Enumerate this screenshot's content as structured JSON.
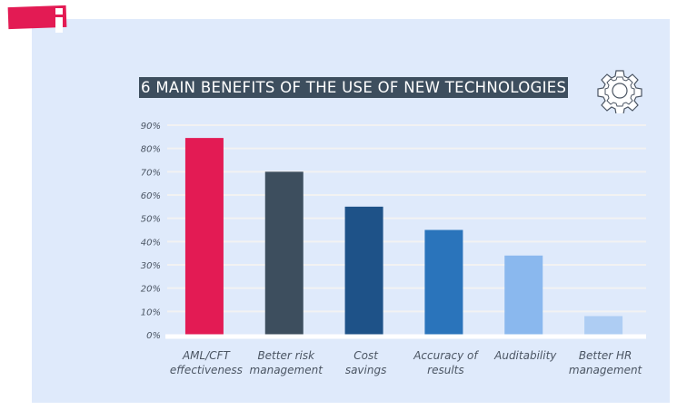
{
  "badge": {
    "icon": "info-icon",
    "color": "#e31b54"
  },
  "header": {
    "title": "6 MAIN BENEFITS OF THE USE OF NEW TECHNOLOGIES",
    "icon": "gear-icon"
  },
  "colors": {
    "panel": "#dfeafb",
    "title_bg": "#3d4e5e",
    "gridline": "#f2f2f2",
    "baseline": "#ffffff"
  },
  "chart_data": {
    "type": "bar",
    "title": "6 MAIN BENEFITS OF THE USE OF NEW TECHNOLOGIES",
    "xlabel": "",
    "ylabel": "",
    "categories": [
      [
        "AML/CFT",
        "effectiveness"
      ],
      [
        "Better risk",
        "management"
      ],
      [
        "Cost",
        "savings"
      ],
      [
        "Accuracy of",
        "results"
      ],
      [
        "Auditability"
      ],
      [
        "Better HR",
        "management"
      ]
    ],
    "values": [
      84.5,
      70,
      55,
      45,
      34,
      8
    ],
    "bar_colors": [
      "#e31b54",
      "#3d4e5e",
      "#1e5288",
      "#2a74bb",
      "#8ab8ee",
      "#aecdf3"
    ],
    "yticks": [
      "0%",
      "10%",
      "20%",
      "30%",
      "40%",
      "50%",
      "60%",
      "70%",
      "80%",
      "90%"
    ],
    "ylim": [
      0,
      90
    ],
    "grid": true,
    "legend": "none"
  }
}
